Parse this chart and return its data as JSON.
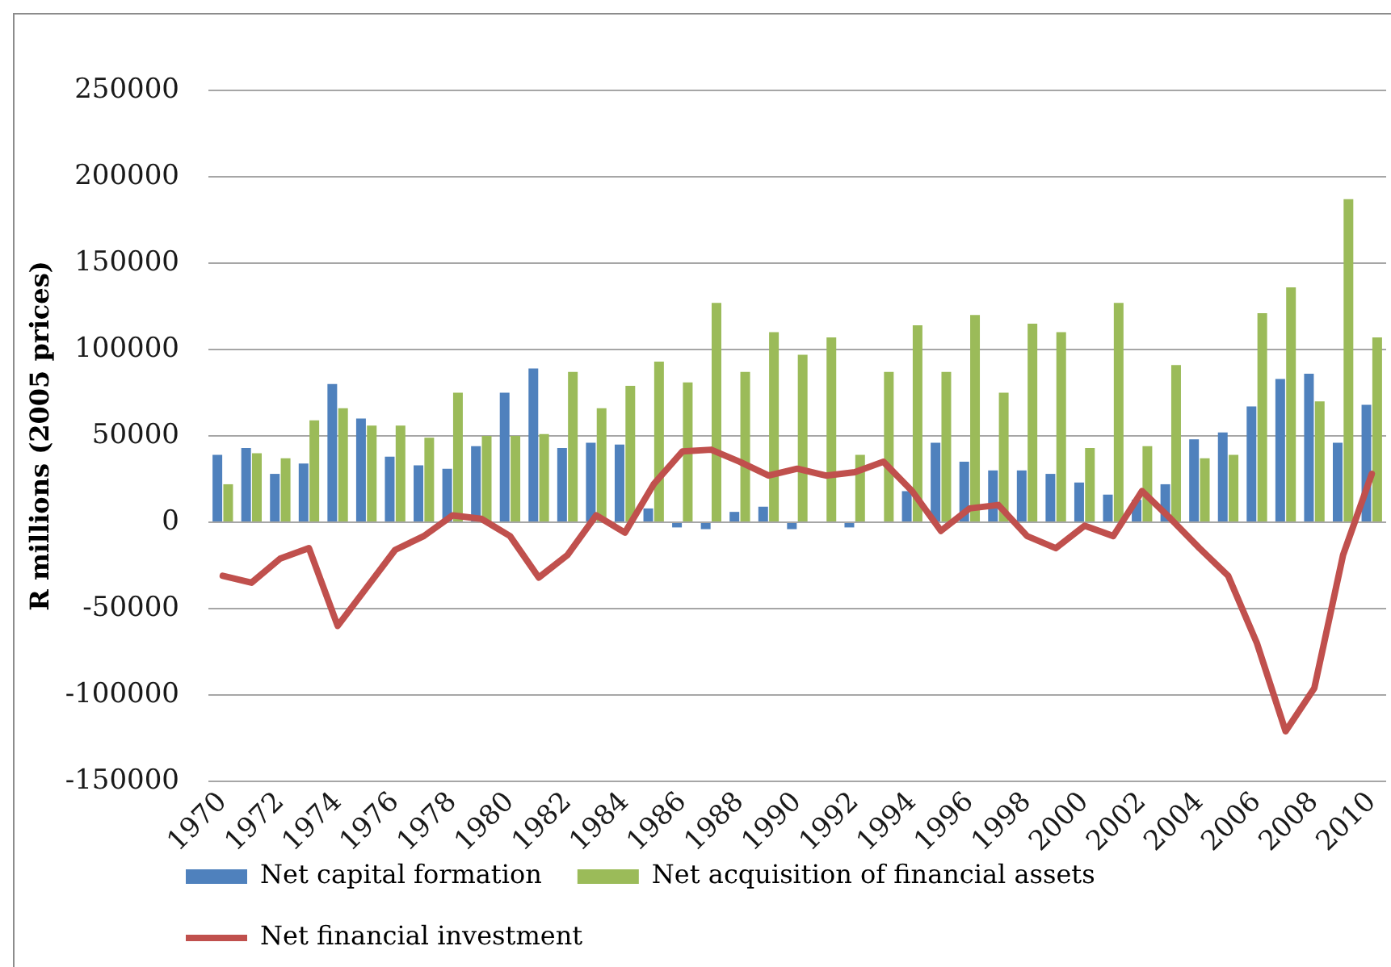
{
  "chart_data": {
    "type": "bar",
    "ylabel": "R millions (2005 prices)",
    "categories": [
      "1970",
      null,
      "1972",
      null,
      "1974",
      null,
      "1976",
      null,
      "1978",
      null,
      "1980",
      null,
      "1982",
      null,
      "1984",
      null,
      "1986",
      null,
      "1988",
      null,
      "1990",
      null,
      "1992",
      null,
      "1994",
      null,
      "1996",
      null,
      "1998",
      null,
      "2000",
      null,
      "2002",
      null,
      "2004",
      null,
      "2006",
      null,
      "2008",
      null,
      "2010"
    ],
    "series": [
      {
        "name": "Net capital formation",
        "color": "#4f81bd",
        "values": [
          39000,
          43000,
          28000,
          34000,
          80000,
          60000,
          38000,
          33000,
          31000,
          44000,
          75000,
          89000,
          43000,
          46000,
          45000,
          8000,
          -3000,
          -4000,
          6000,
          9000,
          -4000,
          0,
          -3000,
          0,
          18000,
          46000,
          35000,
          30000,
          30000,
          28000,
          23000,
          16000,
          13000,
          22000,
          48000,
          52000,
          67000,
          83000,
          86000,
          46000,
          68000
        ]
      },
      {
        "name": "Net acquisition of financial assets",
        "color": "#9bbb59",
        "values": [
          22000,
          40000,
          37000,
          59000,
          66000,
          56000,
          56000,
          49000,
          75000,
          50000,
          50000,
          51000,
          87000,
          66000,
          79000,
          93000,
          81000,
          127000,
          87000,
          110000,
          97000,
          107000,
          39000,
          87000,
          114000,
          87000,
          120000,
          75000,
          115000,
          110000,
          43000,
          127000,
          44000,
          91000,
          37000,
          39000,
          121000,
          136000,
          70000,
          187000,
          107000
        ]
      },
      {
        "name": "Net financial investment",
        "type": "line",
        "color": "#c0504d",
        "values": [
          -31000,
          -35000,
          -21000,
          -15000,
          -60000,
          -38000,
          -16000,
          -8000,
          4000,
          2000,
          -8000,
          -32000,
          -19000,
          4000,
          -6000,
          22000,
          41000,
          42000,
          35000,
          27000,
          31000,
          27000,
          29000,
          35000,
          18000,
          -5000,
          8000,
          10000,
          -8000,
          -15000,
          -2000,
          -8000,
          18000,
          2000,
          -15000,
          -31000,
          -70000,
          -121000,
          -96000,
          -19000,
          28000
        ]
      }
    ],
    "ylim": [
      -150000,
      250000
    ],
    "yticks": [
      -150000,
      -100000,
      -50000,
      0,
      50000,
      100000,
      150000,
      200000,
      250000
    ],
    "grid": "y",
    "legend": "bottom"
  }
}
